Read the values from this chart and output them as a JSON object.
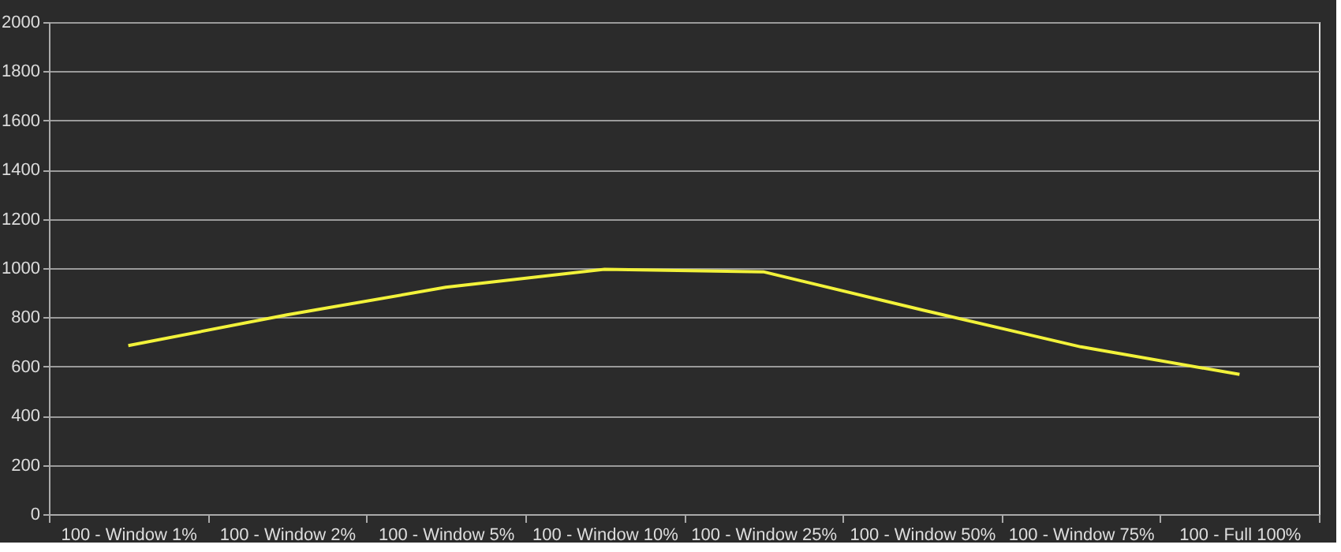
{
  "chart_data": {
    "type": "line",
    "categories": [
      "100 - Window  1%",
      "100 - Window  2%",
      "100 - Window  5%",
      "100 - Window 10%",
      "100 - Window 25%",
      "100 - Window 50%",
      "100 - Window 75%",
      "100 - Full  100%"
    ],
    "series": [
      {
        "color": "#f2f23a",
        "values": [
          685,
          810,
          922,
          995,
          985,
          830,
          680,
          568
        ]
      }
    ],
    "ylim": [
      0,
      2000
    ],
    "yticks": [
      0,
      200,
      400,
      600,
      800,
      1000,
      1200,
      1400,
      1600,
      1800,
      2000
    ],
    "grid": "y",
    "legend": false,
    "marker": "none",
    "line_style": "solid"
  }
}
